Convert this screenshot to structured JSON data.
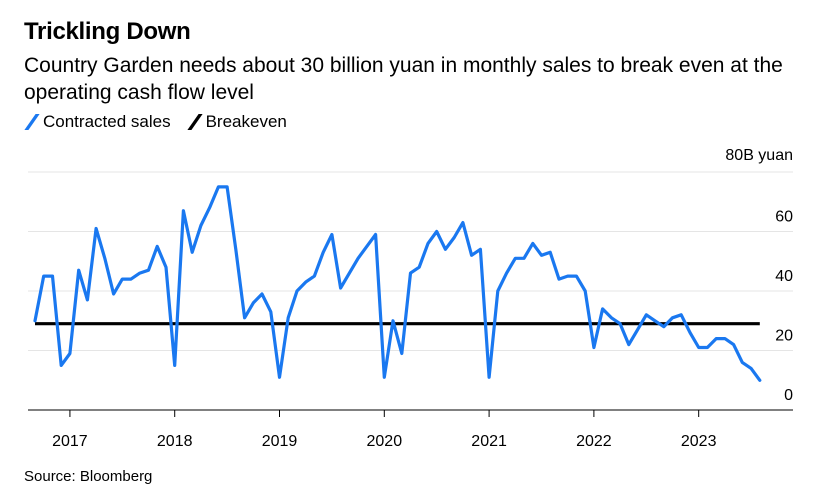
{
  "title": "Trickling Down",
  "subtitle": "Country Garden needs about 30 billion yuan in monthly sales to break even at the operating cash flow level",
  "source": "Source: Bloomberg",
  "colors": {
    "contracted": "#1a78f0",
    "breakeven": "#000000",
    "grid": "#e5e5e5"
  },
  "chart_data": {
    "type": "line",
    "title": "Trickling Down",
    "xlabel": "",
    "ylabel": "80B yuan",
    "ylim": [
      0,
      80
    ],
    "xlim": [
      2016.6,
      2023.9
    ],
    "y_ticks": [
      {
        "value": 80,
        "label": "80B yuan"
      },
      {
        "value": 60,
        "label": "60"
      },
      {
        "value": 40,
        "label": "40"
      },
      {
        "value": 20,
        "label": "20"
      },
      {
        "value": 0,
        "label": "0"
      }
    ],
    "x_ticks": [
      "2017",
      "2018",
      "2019",
      "2020",
      "2021",
      "2022",
      "2023"
    ],
    "legend": [
      {
        "name": "Contracted sales",
        "color": "#1a78f0"
      },
      {
        "name": "Breakeven",
        "color": "#000000"
      }
    ],
    "series": [
      {
        "name": "Contracted sales",
        "start": [
          2016,
          9
        ],
        "values": [
          30,
          45,
          45,
          15,
          19,
          47,
          37,
          61,
          51,
          39,
          44,
          44,
          46,
          47,
          55,
          48,
          15,
          67,
          53,
          62,
          68,
          75,
          75,
          54,
          31,
          36,
          39,
          33,
          11,
          31,
          40,
          43,
          45,
          53,
          59,
          41,
          46,
          51,
          55,
          59,
          11,
          30,
          19,
          46,
          48,
          56,
          60,
          54,
          58,
          63,
          52,
          54,
          11,
          40,
          46,
          51,
          51,
          56,
          52,
          53,
          44,
          45,
          45,
          40,
          21,
          34,
          31,
          29,
          22,
          27,
          32,
          30,
          28,
          31,
          32,
          26,
          21,
          21,
          24,
          24,
          22,
          16,
          14,
          10
        ]
      },
      {
        "name": "Breakeven",
        "x": [
          2016.667,
          2023.583
        ],
        "values": [
          29,
          29
        ]
      }
    ]
  }
}
